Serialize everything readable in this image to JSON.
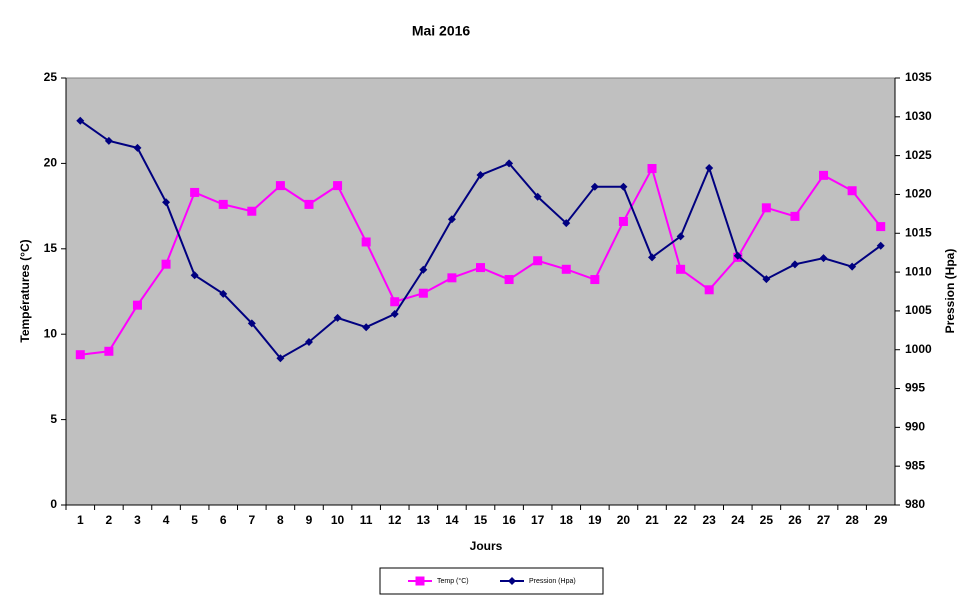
{
  "chart_data": {
    "type": "line",
    "title": "Mai 2016",
    "x_label": "Jours",
    "y_label": "Températures (°C)",
    "y2_label": "Pression (Hpa)",
    "categories": [
      "1",
      "2",
      "3",
      "4",
      "5",
      "6",
      "7",
      "8",
      "9",
      "10",
      "11",
      "12",
      "13",
      "14",
      "15",
      "16",
      "17",
      "18",
      "19",
      "20",
      "21",
      "22",
      "23",
      "24",
      "25",
      "26",
      "27",
      "28",
      "29"
    ],
    "series": [
      {
        "name": "Temp (°C)",
        "color": "#ff00ff",
        "marker": "square",
        "values": [
          8.8,
          9.0,
          11.7,
          14.1,
          18.3,
          17.6,
          17.2,
          18.7,
          17.6,
          18.7,
          15.4,
          11.9,
          12.4,
          13.3,
          13.9,
          13.2,
          14.3,
          13.8,
          13.2,
          16.6,
          19.7,
          13.8,
          12.6,
          14.5,
          17.4,
          16.9,
          19.3,
          18.4,
          16.3
        ]
      },
      {
        "name": "Pression (Hpa)",
        "color": "#000080",
        "marker": "diamond",
        "axis": "y2",
        "values": [
          1029.5,
          1026.9,
          1026.0,
          1019.0,
          1009.6,
          1007.2,
          1003.4,
          998.9,
          1001.0,
          1004.1,
          1002.9,
          1004.6,
          1010.3,
          1016.8,
          1022.5,
          1024.0,
          1019.7,
          1016.3,
          1021.0,
          1021.0,
          1011.9,
          1014.6,
          1023.4,
          1012.1,
          1009.1,
          1011.0,
          1011.8,
          1010.7,
          1013.4
        ]
      }
    ],
    "ylim": [
      0,
      25
    ],
    "yticks": [
      0,
      5,
      10,
      15,
      20,
      25
    ],
    "y2lim": [
      980,
      1035
    ],
    "y2ticks": [
      980,
      985,
      990,
      995,
      1000,
      1005,
      1010,
      1015,
      1020,
      1025,
      1030,
      1035
    ],
    "plot_background": "#c0c0c0",
    "grid": false,
    "legend": "bottom"
  }
}
